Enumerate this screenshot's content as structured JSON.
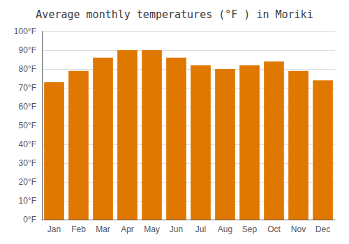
{
  "chart_data": {
    "type": "bar",
    "title": "Average monthly temperatures (°F ) in Moriki",
    "categories": [
      "Jan",
      "Feb",
      "Mar",
      "Apr",
      "May",
      "Jun",
      "Jul",
      "Aug",
      "Sep",
      "Oct",
      "Nov",
      "Dec"
    ],
    "values": [
      73,
      79,
      86,
      90,
      90,
      86,
      82,
      80,
      82,
      84,
      79,
      74
    ],
    "color": "#E07800",
    "ylim": [
      0,
      100
    ],
    "yticks": [
      {
        "value": 0,
        "label": "0°F"
      },
      {
        "value": 10,
        "label": "10°F"
      },
      {
        "value": 20,
        "label": "20°F"
      },
      {
        "value": 30,
        "label": "30°F"
      },
      {
        "value": 40,
        "label": "40°F"
      },
      {
        "value": 50,
        "label": "50°F"
      },
      {
        "value": 60,
        "label": "60°F"
      },
      {
        "value": 70,
        "label": "70°F"
      },
      {
        "value": 80,
        "label": "80°F"
      },
      {
        "value": 90,
        "label": "90°F"
      },
      {
        "value": 100,
        "label": "100°F"
      }
    ],
    "grid": true
  }
}
